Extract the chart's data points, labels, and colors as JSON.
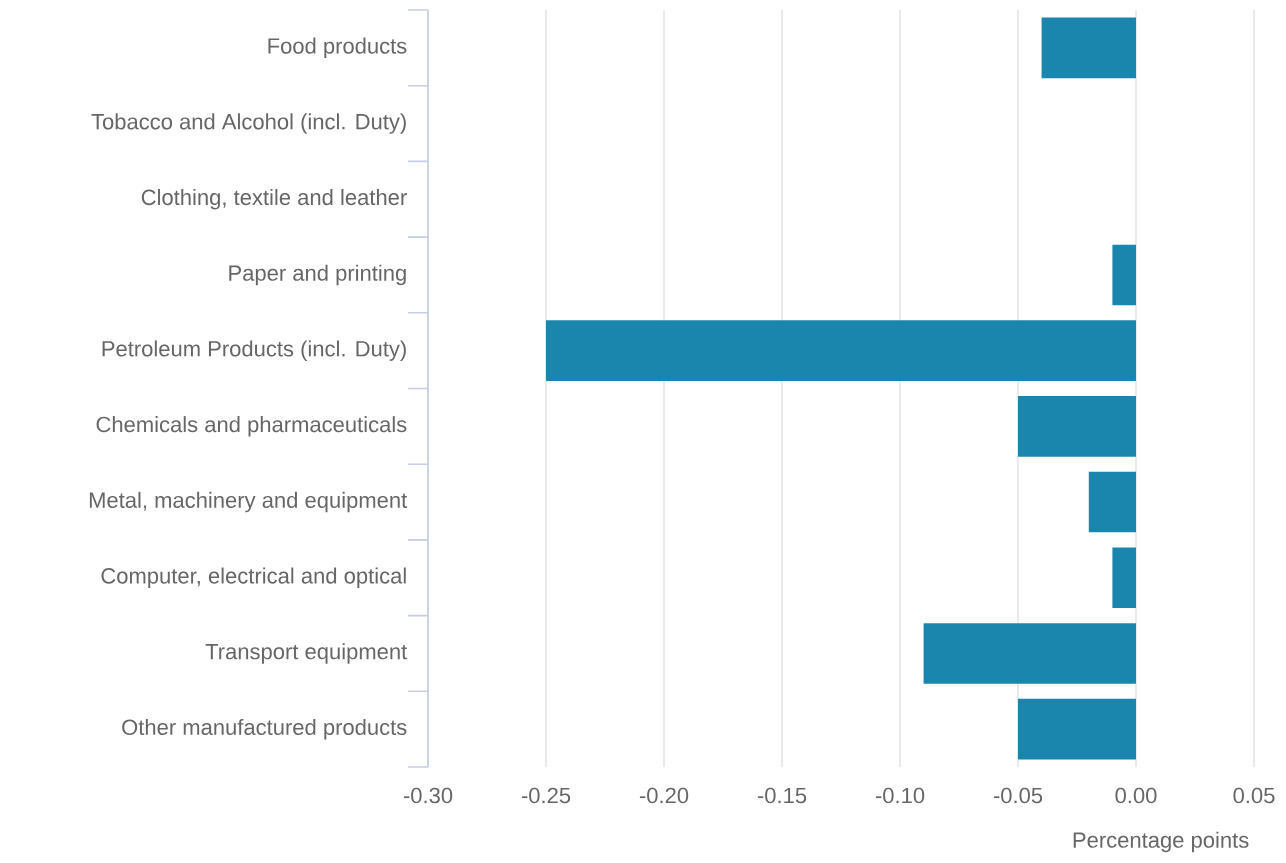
{
  "chart_data": {
    "type": "bar",
    "orientation": "horizontal",
    "xlabel": "Percentage points",
    "categories": [
      "Food products",
      "Tobacco and Alcohol (incl. Duty)",
      "Clothing, textile and leather",
      "Paper and printing",
      "Petroleum Products (incl. Duty)",
      "Chemicals and pharmaceuticals",
      "Metal, machinery and equipment",
      "Computer, electrical and optical",
      "Transport equipment",
      "Other manufactured products"
    ],
    "values": [
      -0.04,
      0,
      0,
      -0.01,
      -0.25,
      -0.05,
      -0.02,
      -0.01,
      -0.09,
      -0.05
    ],
    "color": "#1a85ad",
    "xlim": [
      -0.3,
      0.05
    ],
    "xticks": [
      {
        "value": -0.3,
        "label": "-0.30"
      },
      {
        "value": -0.25,
        "label": "-0.25"
      },
      {
        "value": -0.2,
        "label": "-0.20"
      },
      {
        "value": -0.15,
        "label": "-0.15"
      },
      {
        "value": -0.1,
        "label": "-0.10"
      },
      {
        "value": -0.05,
        "label": "-0.05"
      },
      {
        "value": 0.0,
        "label": "0.00"
      },
      {
        "value": 0.05,
        "label": "0.05"
      }
    ],
    "grid": "x"
  }
}
